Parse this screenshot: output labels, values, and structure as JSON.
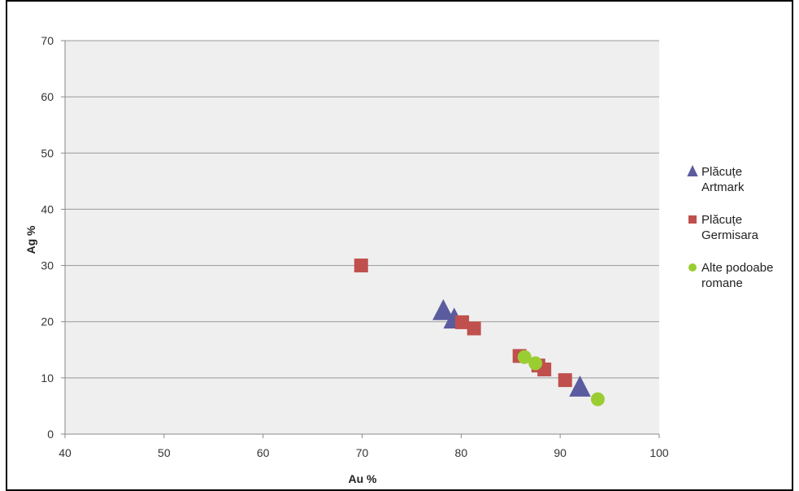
{
  "chart_data": {
    "type": "scatter",
    "title": "",
    "xlabel": "Au %",
    "ylabel": "Ag %",
    "xlim": [
      40,
      100
    ],
    "ylim": [
      0,
      70
    ],
    "xticks": [
      "40",
      "50",
      "60",
      "70",
      "80",
      "90",
      "100"
    ],
    "yticks": [
      "0",
      "10",
      "20",
      "30",
      "40",
      "50",
      "60",
      "70"
    ],
    "grid": "horizontal",
    "legend_position": "right",
    "plot_background": "#efefef",
    "series": [
      {
        "name": [
          "Plăcuțe",
          "Artmark"
        ],
        "marker": "triangle",
        "color": "#5b5b9f",
        "points": [
          [
            78.2,
            22.0
          ],
          [
            79.3,
            20.5
          ],
          [
            92.0,
            8.4
          ]
        ]
      },
      {
        "name": [
          "Plăcuțe",
          "Germisara"
        ],
        "marker": "square",
        "color": "#c0504d",
        "points": [
          [
            69.9,
            30.0
          ],
          [
            80.1,
            19.9
          ],
          [
            81.3,
            18.8
          ],
          [
            85.9,
            13.9
          ],
          [
            87.8,
            12.2
          ],
          [
            88.4,
            11.5
          ],
          [
            90.5,
            9.6
          ]
        ]
      },
      {
        "name": [
          "Alte podoabe",
          "romane"
        ],
        "marker": "circle",
        "color": "#9acd32",
        "points": [
          [
            86.4,
            13.7
          ],
          [
            87.5,
            12.6
          ],
          [
            93.8,
            6.2
          ]
        ]
      }
    ]
  }
}
